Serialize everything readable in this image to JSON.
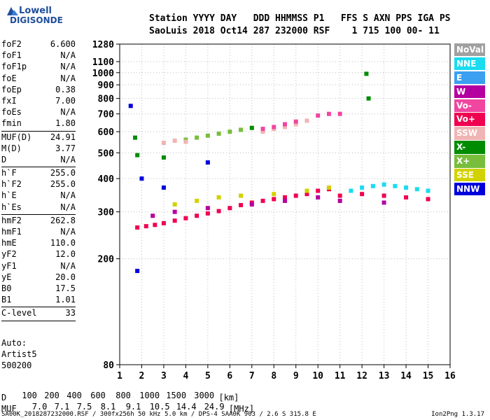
{
  "logo": {
    "line1": "Lowell",
    "line2": "DIGISONDE"
  },
  "header": {
    "line1": "Station YYYY DAY   DDD HHMMSS P1   FFS S AXN PPS IGA PS",
    "line2": "SaoLuis 2018 Oct14 287 232000 RSF    1 715 100 00- 11"
  },
  "params": [
    {
      "label": "foF2",
      "value": "6.600",
      "sep_after": false
    },
    {
      "label": "foF1",
      "value": "N/A",
      "sep_after": false
    },
    {
      "label": "foF1p",
      "value": "N/A",
      "sep_after": false
    },
    {
      "label": "foE",
      "value": "N/A",
      "sep_after": false
    },
    {
      "label": "foEp",
      "value": "0.38",
      "sep_after": false
    },
    {
      "label": "fxI",
      "value": "7.00",
      "sep_after": false
    },
    {
      "label": "foEs",
      "value": "N/A",
      "sep_after": false
    },
    {
      "label": "fmin",
      "value": "1.80",
      "sep_after": true
    },
    {
      "label": "MUF(D)",
      "value": "24.91",
      "sep_after": false
    },
    {
      "label": "M(D)",
      "value": "3.77",
      "sep_after": false
    },
    {
      "label": "D",
      "value": "N/A",
      "sep_after": true
    },
    {
      "label": "h`F",
      "value": "255.0",
      "sep_after": false
    },
    {
      "label": "h`F2",
      "value": "255.0",
      "sep_after": false
    },
    {
      "label": "h`E",
      "value": "N/A",
      "sep_after": false
    },
    {
      "label": "h`Es",
      "value": "N/A",
      "sep_after": true
    },
    {
      "label": "hmF2",
      "value": "262.8",
      "sep_after": false
    },
    {
      "label": "hmF1",
      "value": "N/A",
      "sep_after": false
    },
    {
      "label": "hmE",
      "value": "110.0",
      "sep_after": false
    },
    {
      "label": "yF2",
      "value": "12.0",
      "sep_after": false
    },
    {
      "label": "yF1",
      "value": "N/A",
      "sep_after": false
    },
    {
      "label": "yE",
      "value": "20.0",
      "sep_after": false
    },
    {
      "label": "B0",
      "value": "17.5",
      "sep_after": false
    },
    {
      "label": "B1",
      "value": "1.01",
      "sep_after": true
    },
    {
      "label": "C-level",
      "value": "33",
      "sep_after": true
    }
  ],
  "auto": {
    "line1": "Auto:",
    "line2": "Artist5",
    "line3": "500200"
  },
  "legend": [
    {
      "label": "NoVal",
      "color": "#a0a0a0"
    },
    {
      "label": "NNE",
      "color": "#19dcf0"
    },
    {
      "label": "E",
      "color": "#3ca0f0"
    },
    {
      "label": "W",
      "color": "#b400a0"
    },
    {
      "label": "Vo-",
      "color": "#f046a0"
    },
    {
      "label": "Vo+",
      "color": "#f00050"
    },
    {
      "label": "SSW",
      "color": "#f0b4b4"
    },
    {
      "label": "X-",
      "color": "#008c00"
    },
    {
      "label": "X+",
      "color": "#78be3c"
    },
    {
      "label": "SSE",
      "color": "#d2d200"
    },
    {
      "label": "NNW",
      "color": "#0000dc"
    }
  ],
  "chart_data": {
    "type": "scatter",
    "xlim": [
      1,
      16
    ],
    "ylim": [
      80,
      1280
    ],
    "yscale": "log",
    "x_ticks": [
      "1",
      "2",
      "3",
      "4",
      "5",
      "6",
      "7",
      "8",
      "9",
      "10",
      "11",
      "12",
      "13",
      "14",
      "15",
      "16"
    ],
    "y_ticks": [
      80,
      200,
      300,
      400,
      500,
      600,
      700,
      800,
      900,
      1000,
      1100,
      1280
    ],
    "grid": "dotted",
    "legend_placement": "right",
    "series": [
      {
        "name": "Vo+",
        "points": [
          [
            1.8,
            262
          ],
          [
            2.2,
            265
          ],
          [
            2.6,
            268
          ],
          [
            3.0,
            272
          ],
          [
            3.5,
            278
          ],
          [
            4.0,
            284
          ],
          [
            4.5,
            290
          ],
          [
            5.0,
            296
          ],
          [
            5.5,
            302
          ],
          [
            6.0,
            310
          ],
          [
            6.5,
            318
          ],
          [
            7.0,
            325
          ],
          [
            7.5,
            330
          ],
          [
            8.0,
            335
          ],
          [
            8.5,
            340
          ],
          [
            9.0,
            345
          ],
          [
            9.5,
            350
          ],
          [
            10.0,
            360
          ],
          [
            10.5,
            365
          ],
          [
            11.0,
            345
          ],
          [
            12.0,
            350
          ],
          [
            13.0,
            345
          ],
          [
            14.0,
            340
          ],
          [
            15.0,
            335
          ]
        ]
      },
      {
        "name": "NNE",
        "points": [
          [
            11.5,
            360
          ],
          [
            12.0,
            370
          ],
          [
            12.5,
            375
          ],
          [
            13.0,
            380
          ],
          [
            13.5,
            375
          ],
          [
            14.0,
            370
          ],
          [
            14.5,
            365
          ],
          [
            15.0,
            360
          ]
        ]
      },
      {
        "name": "W",
        "points": [
          [
            2.5,
            290
          ],
          [
            3.5,
            300
          ],
          [
            5.0,
            310
          ],
          [
            7.0,
            320
          ],
          [
            8.5,
            330
          ],
          [
            10.0,
            340
          ],
          [
            11.0,
            330
          ],
          [
            13.0,
            325
          ]
        ]
      },
      {
        "name": "SSE",
        "points": [
          [
            3.5,
            320
          ],
          [
            4.5,
            330
          ],
          [
            5.5,
            340
          ],
          [
            6.5,
            345
          ],
          [
            8.0,
            350
          ],
          [
            9.5,
            360
          ],
          [
            10.5,
            370
          ]
        ]
      },
      {
        "name": "X+",
        "points": [
          [
            4.0,
            560
          ],
          [
            4.5,
            570
          ],
          [
            5.0,
            580
          ],
          [
            5.5,
            590
          ],
          [
            6.0,
            600
          ],
          [
            6.5,
            610
          ]
        ]
      },
      {
        "name": "X-",
        "points": [
          [
            1.7,
            570
          ],
          [
            1.8,
            490
          ],
          [
            3.0,
            480
          ],
          [
            7.0,
            620
          ],
          [
            12.2,
            990
          ],
          [
            12.3,
            800
          ]
        ]
      },
      {
        "name": "NNW",
        "points": [
          [
            1.5,
            750
          ],
          [
            1.8,
            180
          ],
          [
            2.0,
            400
          ],
          [
            3.0,
            370
          ],
          [
            5.0,
            460
          ]
        ]
      },
      {
        "name": "SSW",
        "points": [
          [
            3.0,
            545
          ],
          [
            3.5,
            555
          ],
          [
            4.0,
            550
          ],
          [
            7.5,
            600
          ],
          [
            8.0,
            615
          ],
          [
            8.5,
            625
          ],
          [
            9.0,
            640
          ],
          [
            9.5,
            660
          ]
        ]
      },
      {
        "name": "Vo-",
        "points": [
          [
            7.5,
            615
          ],
          [
            8.0,
            625
          ],
          [
            8.5,
            640
          ],
          [
            9.0,
            655
          ],
          [
            10.0,
            690
          ],
          [
            10.5,
            700
          ],
          [
            11.0,
            700
          ]
        ]
      }
    ]
  },
  "footer": {
    "d_label": "D",
    "d_values": [
      "100",
      "200",
      "400",
      "600",
      "800",
      "1000",
      "1500",
      "3000"
    ],
    "d_unit": "[km]",
    "muf_label": "MUF",
    "muf_values": [
      "7.0",
      "7.1",
      "7.5",
      "8.1",
      "9.1",
      "10.5",
      "14.4",
      "24.9"
    ],
    "muf_unit": "[MHz]"
  },
  "source_line": "SA00K_2018287232000.RSF / 300fx256h 50 kHz 5.0 km / DPS-4 SAA0K 903 / 2.6 S 315.8 E",
  "version": "Ion2Png 1.3.17"
}
